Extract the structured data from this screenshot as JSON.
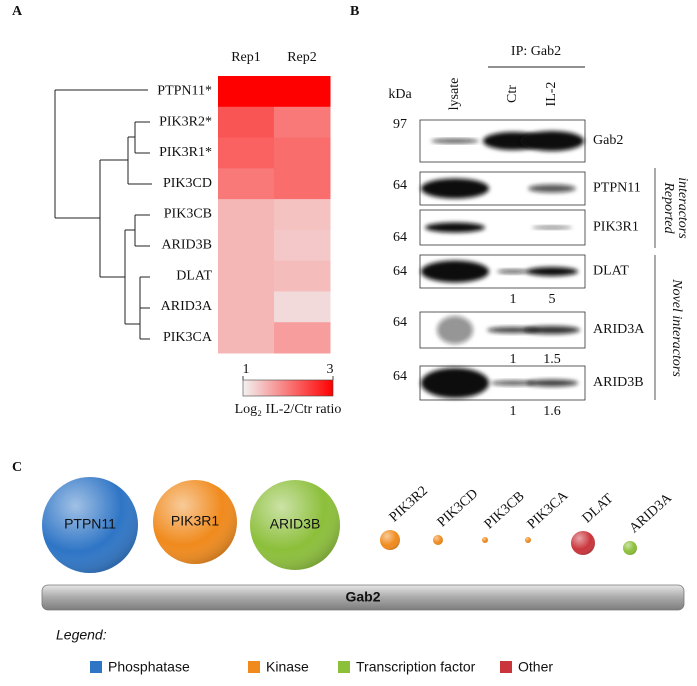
{
  "panel_labels": [
    "A",
    "B",
    "C"
  ],
  "heatmap": {
    "columns": [
      "Rep1",
      "Rep2"
    ],
    "rows": [
      "PTPN11*",
      "PIK3R2*",
      "PIK3R1*",
      "PIK3CD",
      "PIK3CB",
      "ARID3B",
      "DLAT",
      "ARID3A",
      "PIK3CA"
    ],
    "values": [
      [
        3,
        3
      ],
      [
        2.3,
        2.0
      ],
      [
        2.2,
        2.1
      ],
      [
        2.0,
        2.1
      ],
      [
        1.5,
        1.4
      ],
      [
        1.5,
        1.35
      ],
      [
        1.5,
        1.45
      ],
      [
        1.5,
        1.2
      ],
      [
        1.5,
        1.7
      ]
    ],
    "colorbar": {
      "lim": [
        1,
        3
      ],
      "ticks": [
        1,
        3
      ],
      "label": "Log₂ IL-2/Ctr ratio"
    }
  },
  "blot": {
    "title": "IP: Gab2",
    "unit": "kDa",
    "lanes": [
      "lysate",
      "Ctr",
      "IL-2"
    ],
    "rows": [
      {
        "marker": 97,
        "protein": "Gab2"
      },
      {
        "marker": 64,
        "protein": "PTPN11"
      },
      {
        "marker": 64,
        "protein": "PIK3R1"
      },
      {
        "marker": 64,
        "protein": "DLAT",
        "quant": [
          1,
          5
        ]
      },
      {
        "marker": 64,
        "protein": "ARID3A",
        "quant": [
          1,
          1.5
        ]
      },
      {
        "marker": 64,
        "protein": "ARID3B",
        "quant": [
          1,
          1.6
        ]
      }
    ],
    "groups": [
      [
        "Reported",
        "interactors"
      ],
      [
        "Novel interactors"
      ]
    ]
  },
  "diagram": {
    "bar": "Gab2",
    "proteins": [
      {
        "name": "PTPN11",
        "class": 0
      },
      {
        "name": "PIK3R1",
        "class": 1
      },
      {
        "name": "ARID3B",
        "class": 2
      },
      {
        "name": "PIK3R2",
        "class": 1
      },
      {
        "name": "PIK3CD",
        "class": 1
      },
      {
        "name": "PIK3CB",
        "class": 1
      },
      {
        "name": "PIK3CA",
        "class": 1
      },
      {
        "name": "DLAT",
        "class": 3
      },
      {
        "name": "ARID3A",
        "class": 2
      }
    ],
    "legend_title": "Legend:",
    "classes": [
      {
        "name": "Phosphatase",
        "color": "#2e75c6"
      },
      {
        "name": "Kinase",
        "color": "#f08a1c"
      },
      {
        "name": "Transcription factor",
        "color": "#8cbf3a"
      },
      {
        "name": "Other",
        "color": "#c9353b"
      }
    ]
  }
}
